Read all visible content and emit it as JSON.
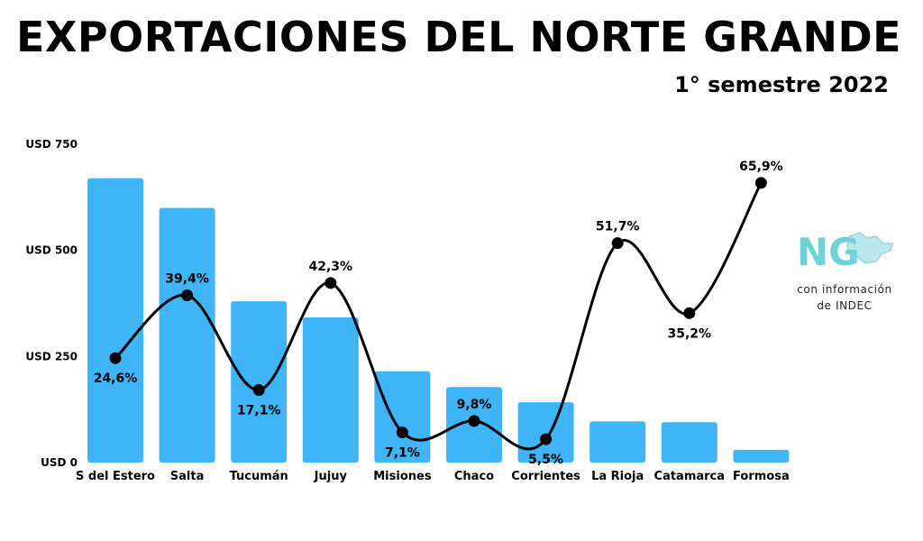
{
  "title": "EXPORTACIONES DEL NORTE GRANDE",
  "subtitle": "1° semestre 2022",
  "source": {
    "line1": "con información",
    "line2": "de INDEC"
  },
  "logo": {
    "text": "NG",
    "icon": "ng-logo-map-icon"
  },
  "colors": {
    "bar": "#3fb4f7",
    "line": "#000000",
    "text": "#000000"
  },
  "chart_data": {
    "type": "bar",
    "categories": [
      "S del Estero",
      "Salta",
      "Tucumán",
      "Jujuy",
      "Misiones",
      "Chaco",
      "Corrientes",
      "La Rioja",
      "Catamarca",
      "Formosa"
    ],
    "series": [
      {
        "type": "bar",
        "values": [
          670,
          600,
          380,
          342,
          215,
          178,
          142,
          97,
          95,
          30
        ]
      },
      {
        "type": "line",
        "values": [
          24.6,
          39.4,
          17.1,
          42.3,
          7.1,
          9.8,
          5.5,
          51.7,
          35.2,
          65.9
        ],
        "labels": [
          "24,6%",
          "39,4%",
          "17,1%",
          "42,3%",
          "7,1%",
          "9,8%",
          "5,5%",
          "51,7%",
          "35,2%",
          "65,9%"
        ]
      }
    ],
    "y_ticks": [
      "USD 0",
      "USD 250",
      "USD 500",
      "USD 750"
    ],
    "y_tick_values": [
      0,
      250,
      500,
      750
    ],
    "ylim": [
      0,
      750
    ],
    "line_ylim": [
      0,
      75
    ],
    "grid": false,
    "legend": "none"
  }
}
